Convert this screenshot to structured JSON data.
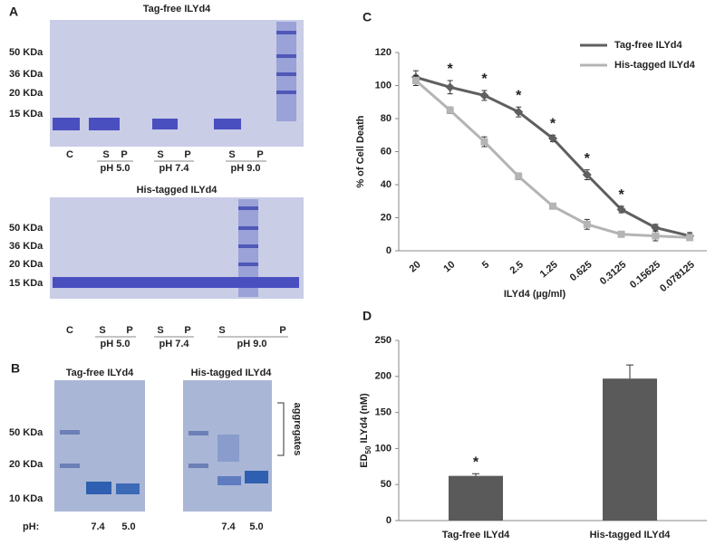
{
  "panels": {
    "a": "A",
    "b": "B",
    "c": "C",
    "d": "D"
  },
  "gel_a_top": {
    "title": "Tag-free ILYd4",
    "markers": [
      "50 KDa",
      "36 KDa",
      "20 KDa",
      "15 KDa"
    ],
    "lanes": [
      "C",
      "S",
      "P",
      "S",
      "P",
      "S",
      "P"
    ],
    "groups": [
      "pH 5.0",
      "pH 7.4",
      "pH 9.0"
    ]
  },
  "gel_a_bottom": {
    "title": "His-tagged ILYd4",
    "markers": [
      "50 KDa",
      "36 KDa",
      "20 KDa",
      "15 KDa"
    ],
    "lanes": [
      "C",
      "S",
      "P",
      "S",
      "P",
      "S",
      "P"
    ],
    "groups": [
      "pH 5.0",
      "pH 7.4",
      "pH 9.0"
    ]
  },
  "gel_b": {
    "titles": [
      "Tag-free ILYd4",
      "His-tagged ILYd4"
    ],
    "markers": [
      "50 KDa",
      "20 KDa",
      "10 KDa"
    ],
    "ph_label": "pH:",
    "lanes": [
      "7.4",
      "5.0",
      "7.4",
      "5.0"
    ],
    "annotation": "aggregates"
  },
  "chart_data": [
    {
      "type": "line",
      "xlabel": "ILYd4 (µg/ml)",
      "ylabel": "% of Cell Death",
      "categories": [
        "20",
        "10",
        "5",
        "2.5",
        "1.25",
        "0.625",
        "0.3125",
        "0.15625",
        "0.078125"
      ],
      "series": [
        {
          "name": "Tag-free ILYd4",
          "color": "#5f5f5f",
          "values": [
            105,
            99,
            94,
            84,
            68,
            46,
            25,
            14,
            9
          ],
          "errors": [
            4,
            4,
            3,
            3,
            2,
            3,
            2,
            2,
            2
          ]
        },
        {
          "name": "His-tagged ILYd4",
          "color": "#b4b4b4",
          "values": [
            103,
            85,
            66,
            45,
            27,
            16,
            10,
            9,
            8
          ],
          "errors": [
            3,
            2,
            3,
            2,
            1,
            3,
            1,
            3,
            1
          ]
        }
      ],
      "significance": [
        null,
        "*",
        "*",
        "*",
        "*",
        "*",
        "*",
        null,
        null
      ],
      "ylim": [
        0,
        120
      ],
      "yticks": [
        0,
        20,
        40,
        60,
        80,
        100,
        120
      ],
      "legend": "top-right"
    },
    {
      "type": "bar",
      "ylabel": [
        "ED",
        "50",
        " ILYd4 (nM)"
      ],
      "categories": [
        "Tag-free ILYd4",
        "His-tagged ILYd4"
      ],
      "values": [
        62,
        197
      ],
      "errors": [
        3,
        19
      ],
      "color": "#5a5a5a",
      "significance": [
        "*",
        null
      ],
      "ylim": [
        0,
        250
      ],
      "yticks": [
        0,
        50,
        100,
        150,
        200,
        250
      ]
    }
  ]
}
